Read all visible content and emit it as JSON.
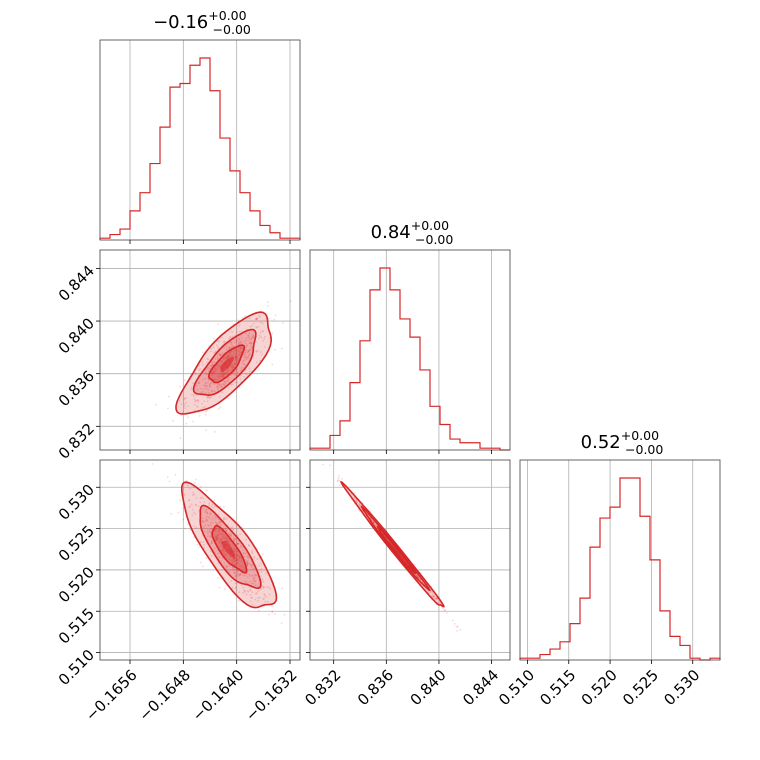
{
  "chart_data": {
    "type": "corner",
    "color": "#d62728",
    "grid": true,
    "panel_titles": [
      {
        "value": "−0.16",
        "sup": "+0.00",
        "sub": "−0.00"
      },
      {
        "value": "0.84",
        "sup": "+0.00",
        "sub": "−0.00"
      },
      {
        "value": "0.52",
        "sup": "+0.00",
        "sub": "−0.00"
      }
    ],
    "axes": [
      {
        "range": [
          -0.16605,
          -0.16305
        ],
        "ticks": [
          "−0.1656",
          "−0.1648",
          "−0.1640",
          "−0.1632"
        ],
        "tick_values": [
          -0.1656,
          -0.1648,
          -0.164,
          -0.1632
        ]
      },
      {
        "range": [
          0.8302,
          0.8454
        ],
        "ticks": [
          "0.832",
          "0.836",
          "0.840",
          "0.844"
        ],
        "tick_values": [
          0.832,
          0.836,
          0.84,
          0.844
        ]
      },
      {
        "range": [
          0.5091,
          0.5333
        ],
        "ticks": [
          "0.510",
          "0.515",
          "0.520",
          "0.525",
          "0.530"
        ],
        "tick_values": [
          0.51,
          0.515,
          0.52,
          0.525,
          0.53
        ]
      }
    ],
    "histograms": [
      {
        "bins": 20,
        "counts": [
          1,
          3,
          6,
          16,
          26,
          42,
          62,
          84,
          86,
          96,
          100,
          82,
          56,
          38,
          26,
          16,
          8,
          4,
          1,
          1
        ]
      },
      {
        "bins": 20,
        "counts": [
          1,
          1,
          8,
          16,
          37,
          60,
          88,
          100,
          88,
          72,
          62,
          44,
          24,
          14,
          6,
          4,
          4,
          1,
          1,
          0
        ]
      },
      {
        "bins": 20,
        "counts": [
          1,
          1,
          3,
          6,
          10,
          20,
          34,
          62,
          78,
          84,
          100,
          100,
          79,
          55,
          27,
          13,
          8,
          1,
          0,
          1
        ]
      }
    ],
    "pairs": [
      {
        "x_param": 0,
        "y_param": 1,
        "mean": [
          -0.16415,
          0.8367
        ],
        "std": [
          0.00029,
          0.00158
        ],
        "corr": 0.75
      },
      {
        "x_param": 0,
        "y_param": 2,
        "mean": [
          -0.16412,
          0.5225
        ],
        "std": [
          0.00029,
          0.0031
        ],
        "corr": -0.82
      },
      {
        "x_param": 1,
        "y_param": 2,
        "mean": [
          0.8367,
          0.5225
        ],
        "std": [
          0.00158,
          0.0031
        ],
        "corr": -0.995
      }
    ]
  }
}
